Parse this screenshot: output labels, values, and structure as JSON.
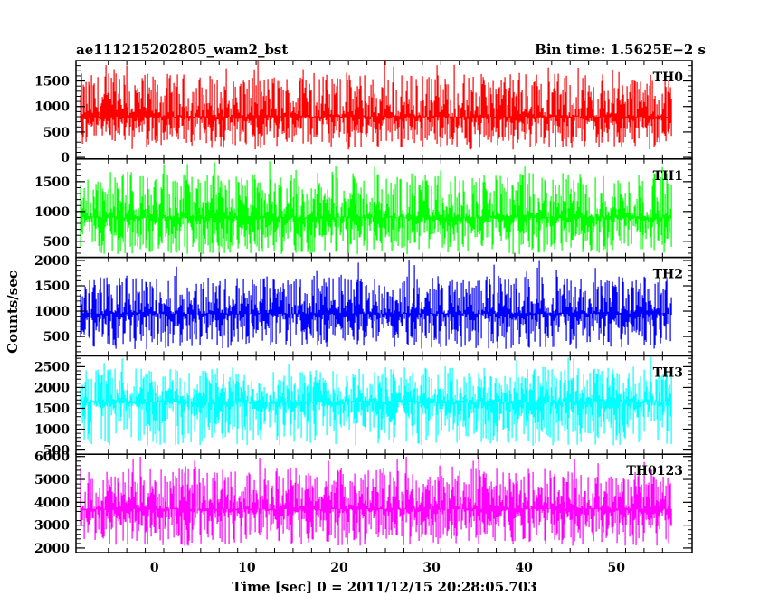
{
  "header": {
    "title": "ae111215202805_wam2_bst",
    "bin_time": "Bin time: 1.5625E−2 s"
  },
  "chart_data": {
    "type": "line",
    "title": "ae111215202805_wam2_bst",
    "subtitle": "Bin time: 1.5625E−2 s",
    "xlabel": "Time [sec] 0 = 2011/12/15 20:28:05.703",
    "ylabel": "Counts/sec",
    "xlim": [
      -8.5,
      58.2
    ],
    "x_ticks": [
      0,
      10,
      20,
      30,
      40,
      50
    ],
    "data_x_range": [
      -8,
      56
    ],
    "bin_time_s": 0.015625,
    "grid": false,
    "panels": [
      {
        "name": "TH0",
        "color": "#ff0000",
        "ylim": [
          -30,
          1900
        ],
        "y_ticks": [
          0,
          500,
          1000,
          1500
        ],
        "baseline": 800,
        "low": 150,
        "high": 1650,
        "peak": 1900
      },
      {
        "name": "TH1",
        "color": "#00ff00",
        "ylim": [
          230,
          1880
        ],
        "y_ticks": [
          500,
          1000,
          1500
        ],
        "baseline": 900,
        "low": 280,
        "high": 1650,
        "peak": 1850
      },
      {
        "name": "TH2",
        "color": "#0000ff",
        "ylim": [
          120,
          2060
        ],
        "y_ticks": [
          500,
          1000,
          1500,
          2000
        ],
        "baseline": 950,
        "low": 250,
        "high": 1700,
        "peak": 2050
      },
      {
        "name": "TH3",
        "color": "#00ffff",
        "ylim": [
          400,
          2760
        ],
        "y_ticks": [
          500,
          1000,
          1500,
          2000,
          2500
        ],
        "baseline": 1650,
        "low": 600,
        "high": 2500,
        "peak": 2760
      },
      {
        "name": "TH0123",
        "color": "#ff00ff",
        "ylim": [
          1800,
          6100
        ],
        "y_ticks": [
          2000,
          3000,
          4000,
          5000,
          6000
        ],
        "baseline": 3700,
        "low": 2100,
        "high": 5500,
        "peak": 6050
      }
    ]
  }
}
